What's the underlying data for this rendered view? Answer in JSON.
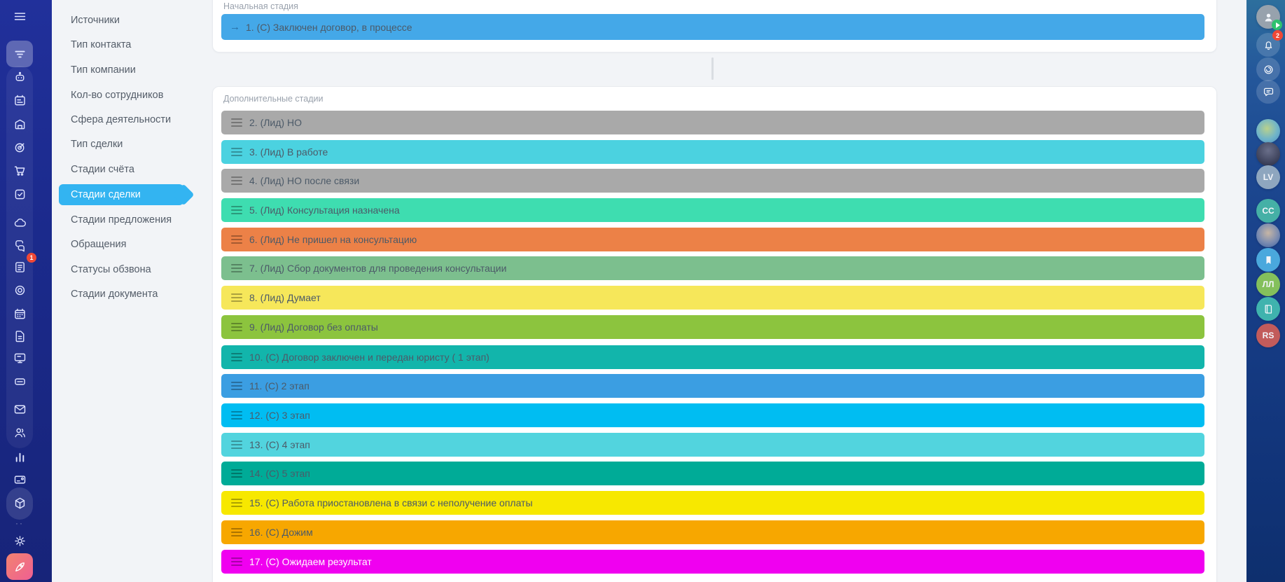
{
  "theme": {
    "rail_bg": "#1b2a8c",
    "active_menu_color": "#33b4f1",
    "badge_color": "#ef4836",
    "rocket_button_color": "#f0708f",
    "stage_text_color": "#4c5a68"
  },
  "left_rail": {
    "items": [
      {
        "key": "menu",
        "name": "menu-button",
        "icon": "menu"
      },
      {
        "key": "filter",
        "name": "rail-item-filter",
        "icon": "filter",
        "active": true
      },
      {
        "key": "bot",
        "name": "rail-item-bot",
        "icon": "bot"
      },
      {
        "key": "planner",
        "name": "rail-item-planner",
        "icon": "planner"
      },
      {
        "key": "storage",
        "name": "rail-item-storage",
        "icon": "storage"
      },
      {
        "key": "target",
        "name": "rail-item-target",
        "icon": "target"
      },
      {
        "key": "cart",
        "name": "rail-item-shop",
        "icon": "cart"
      },
      {
        "key": "tasks",
        "name": "rail-item-tasks",
        "icon": "tasks"
      },
      {
        "key": "cloud",
        "name": "rail-item-cloud",
        "icon": "cloud"
      },
      {
        "key": "chats",
        "name": "rail-item-chats",
        "icon": "chats"
      },
      {
        "key": "feed",
        "name": "rail-item-feed",
        "icon": "feed",
        "badge": "1"
      },
      {
        "key": "ring",
        "name": "rail-item-disk",
        "icon": "ring"
      },
      {
        "key": "calendar",
        "name": "rail-item-calendar",
        "icon": "calendar"
      },
      {
        "key": "document",
        "name": "rail-item-documents",
        "icon": "document"
      },
      {
        "key": "board",
        "name": "rail-item-signboard",
        "icon": "board"
      },
      {
        "key": "devices",
        "name": "rail-item-devices",
        "icon": "devices"
      },
      {
        "key": "mail",
        "name": "rail-item-mail",
        "icon": "mail"
      },
      {
        "key": "people",
        "name": "rail-item-people",
        "icon": "people"
      },
      {
        "key": "stats",
        "name": "rail-item-stats",
        "icon": "stats"
      },
      {
        "key": "card",
        "name": "rail-item-card",
        "icon": "card"
      },
      {
        "key": "cube",
        "name": "rail-item-market",
        "icon": "cube",
        "highlight": true
      },
      {
        "key": "gear",
        "name": "rail-item-settings",
        "icon": "gear"
      },
      {
        "key": "rocket",
        "name": "rail-item-rocket",
        "icon": "rocket",
        "rocket": true
      }
    ]
  },
  "sidebar": {
    "items": [
      {
        "key": "sources",
        "label": "Источники"
      },
      {
        "key": "contact-type",
        "label": "Тип контакта"
      },
      {
        "key": "company-type",
        "label": "Тип компании"
      },
      {
        "key": "employee-count",
        "label": "Кол-во сотрудников"
      },
      {
        "key": "activity-field",
        "label": "Сфера деятельности"
      },
      {
        "key": "deal-type",
        "label": "Тип сделки"
      },
      {
        "key": "invoice-stages",
        "label": "Стадии счёта"
      },
      {
        "key": "deal-stages",
        "label": "Стадии сделки",
        "active": true
      },
      {
        "key": "quote-stages",
        "label": "Стадии предложения"
      },
      {
        "key": "requests",
        "label": "Обращения"
      },
      {
        "key": "call-statuses",
        "label": "Статусы обзвона"
      },
      {
        "key": "document-stages",
        "label": "Стадии документа"
      }
    ]
  },
  "content": {
    "sections": [
      {
        "title": "Начальная стадия",
        "stages": [
          {
            "label": "1. (С) Заключен договор, в процессе",
            "color": "#44a8e8",
            "handle": "arrow"
          }
        ]
      },
      {
        "title": "Дополнительные стадии",
        "stages": [
          {
            "label": "2. (Лид) НО",
            "color": "#a9a9a9"
          },
          {
            "label": "3. (Лид) В работе",
            "color": "#4bd2e0"
          },
          {
            "label": "4. (Лид) НО после связи",
            "color": "#a9a9a9"
          },
          {
            "label": "5. (Лид) Консультация назначена",
            "color": "#3eddb0"
          },
          {
            "label": "6. (Лид) Не пришел на консультацию",
            "color": "#ec8147"
          },
          {
            "label": "7. (Лид) Сбор документов для проведения консультации",
            "color": "#7cbf8e"
          },
          {
            "label": "8. (Лид) Думает",
            "color": "#f6e75a"
          },
          {
            "label": "9. (Лид) Договор без оплаты",
            "color": "#8cc43e"
          },
          {
            "label": "10. (С) Договор заключен и передан юристу ( 1 этап)",
            "color": "#12b5ab"
          },
          {
            "label": "11. (С) 2 этап",
            "color": "#3b9ee2"
          },
          {
            "label": "12. (С) 3 этап",
            "color": "#00bdf2"
          },
          {
            "label": "13. (С) 4 этап",
            "color": "#52d4de"
          },
          {
            "label": "14. (С) 5 этап",
            "color": "#00ab97"
          },
          {
            "label": "15. (С) Работа приостановлена в связи с неполучение оплаты",
            "color": "#f7e800"
          },
          {
            "label": "16. (С) Дожим",
            "color": "#f7a700"
          },
          {
            "label": "17. (С) Ожидаем результат",
            "color": "#f000f0",
            "textColor": "#ffffff"
          }
        ]
      }
    ]
  },
  "right_dock": {
    "items": [
      {
        "key": "profile",
        "name": "user-avatar",
        "type": "icon",
        "icon": "person",
        "bg": "#97a2ad",
        "status": "online"
      },
      {
        "key": "notifications",
        "name": "notifications-bell",
        "type": "icon",
        "icon": "bell",
        "ghost": true,
        "badge": "2"
      },
      {
        "key": "copilot",
        "name": "copilot-button",
        "type": "icon",
        "icon": "spiral",
        "ghost": true
      },
      {
        "key": "support",
        "name": "support-chat-button",
        "type": "icon",
        "icon": "chatbubble",
        "ghost": true
      },
      {
        "key": "head1",
        "name": "chat-head-avatar",
        "type": "avatar",
        "bg": "radial-gradient(circle at 45% 40%, #b9d18c 0%, #6fb4c9 55%, #4e8fc0 100%)"
      },
      {
        "key": "head2",
        "name": "chat-head-avatar",
        "type": "avatar",
        "bg": "radial-gradient(circle at 50% 35%, #6a6f8a 0%, #3a3f58 70%, #2c3047 100%)"
      },
      {
        "key": "head-lv",
        "name": "chat-head-initials",
        "type": "initials",
        "text": "LV",
        "bg": "#8ea6bf"
      },
      {
        "key": "head-cc",
        "name": "chat-head-initials",
        "type": "initials",
        "text": "CC",
        "bg": "#45b0a6"
      },
      {
        "key": "head3",
        "name": "chat-head-avatar",
        "type": "avatar",
        "bg": "radial-gradient(circle at 50% 40%, #c7b6a5 0%, #7a8bb0 55%, #3c5f9e 100%)"
      },
      {
        "key": "head-bookmark",
        "name": "chat-head-bookmark",
        "type": "icon",
        "icon": "bookmark",
        "bg": "#4aa8dd"
      },
      {
        "key": "head-ll",
        "name": "chat-head-initials",
        "type": "initials",
        "text": "ЛЛ",
        "bg": "#84c05c"
      },
      {
        "key": "head-book",
        "name": "chat-head-book",
        "type": "icon",
        "icon": "book",
        "bg": "#3fb3ae"
      },
      {
        "key": "head-rs",
        "name": "chat-head-initials",
        "type": "initials",
        "text": "RS",
        "bg": "#c25b5b"
      }
    ]
  }
}
